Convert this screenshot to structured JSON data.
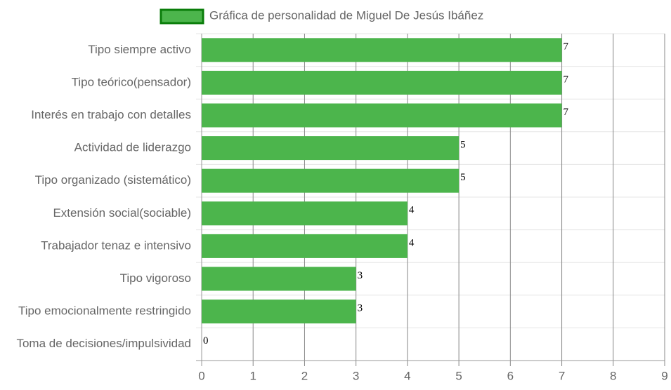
{
  "chart_data": {
    "type": "bar",
    "categories": [
      "Tipo siempre activo",
      "Tipo teórico(pensador)",
      "Interés en trabajo con detalles",
      "Actividad de liderazgo",
      "Tipo organizado (sistemático)",
      "Extensión social(sociable)",
      "Trabajador tenaz e intensivo",
      "Tipo vigoroso",
      "Tipo emocionalmente restringido",
      "Toma de decisiones/impulsividad"
    ],
    "series": [
      {
        "name": "Gráfica de personalidad de Miguel De Jesús Ibáñez",
        "color": "#4cb54c",
        "values": [
          7,
          7,
          7,
          5,
          5,
          4,
          4,
          3,
          3,
          0
        ]
      }
    ],
    "xlim": [
      0,
      9
    ],
    "xticks": [
      0,
      1,
      2,
      3,
      4,
      5,
      6,
      7,
      8,
      9
    ],
    "grid": true
  }
}
